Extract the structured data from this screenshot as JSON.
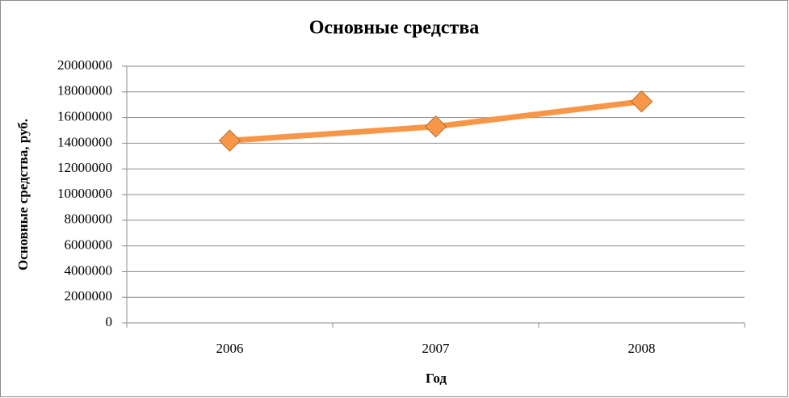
{
  "chart_data": {
    "type": "line",
    "title": "Основные средства",
    "x_label": "Год",
    "y_label": "Основные средства, руб.",
    "categories": [
      "2006",
      "2007",
      "2008"
    ],
    "series": [
      {
        "name": "Основные средства",
        "color": "#f79646",
        "values": [
          14200000,
          15300000,
          17250000
        ]
      }
    ],
    "ylim": [
      0,
      20000000
    ],
    "yticks": [
      0,
      2000000,
      4000000,
      6000000,
      8000000,
      10000000,
      12000000,
      14000000,
      16000000,
      18000000,
      20000000
    ],
    "grid": true
  }
}
